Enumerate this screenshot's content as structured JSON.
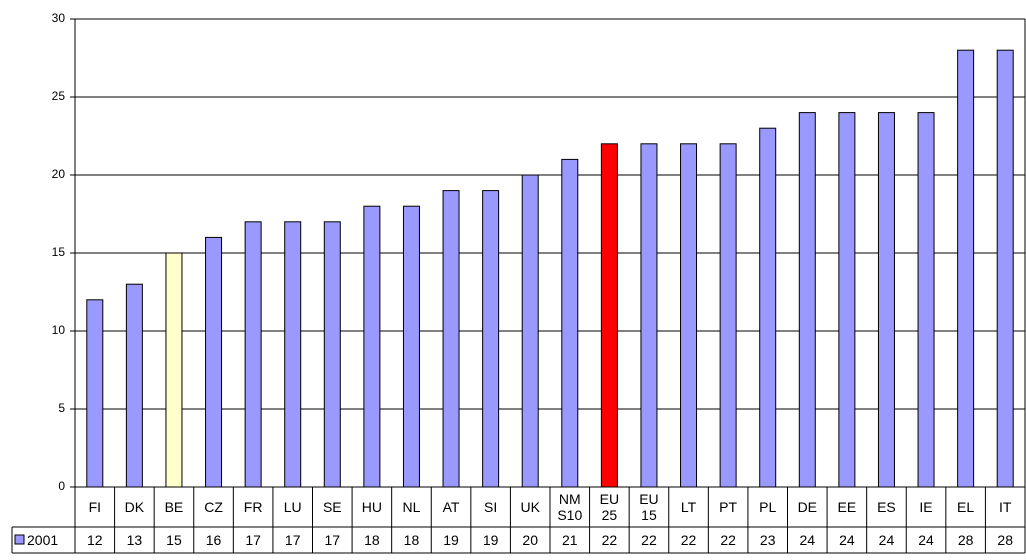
{
  "chart_data": {
    "type": "bar",
    "categories": [
      "FI",
      "DK",
      "BE",
      "CZ",
      "FR",
      "LU",
      "SE",
      "HU",
      "NL",
      "AT",
      "SI",
      "UK",
      "NM S10",
      "EU 25",
      "EU 15",
      "LT",
      "PT",
      "PL",
      "DE",
      "EE",
      "ES",
      "IE",
      "EL",
      "IT"
    ],
    "series": [
      {
        "name": "2001",
        "color": "#9999ff",
        "values": [
          12,
          13,
          15,
          16,
          17,
          17,
          17,
          18,
          18,
          19,
          19,
          20,
          21,
          22,
          22,
          22,
          22,
          23,
          24,
          24,
          24,
          24,
          28,
          28
        ],
        "bar_colors": [
          "#9999ff",
          "#9999ff",
          "#ffffcc",
          "#9999ff",
          "#9999ff",
          "#9999ff",
          "#9999ff",
          "#9999ff",
          "#9999ff",
          "#9999ff",
          "#9999ff",
          "#9999ff",
          "#9999ff",
          "#ff0000",
          "#9999ff",
          "#9999ff",
          "#9999ff",
          "#9999ff",
          "#9999ff",
          "#9999ff",
          "#9999ff",
          "#9999ff",
          "#9999ff",
          "#9999ff"
        ]
      }
    ],
    "ylim": [
      0,
      30
    ],
    "yticks": [
      0,
      5,
      10,
      15,
      20,
      25,
      30
    ],
    "grid": true,
    "data_table": true
  }
}
